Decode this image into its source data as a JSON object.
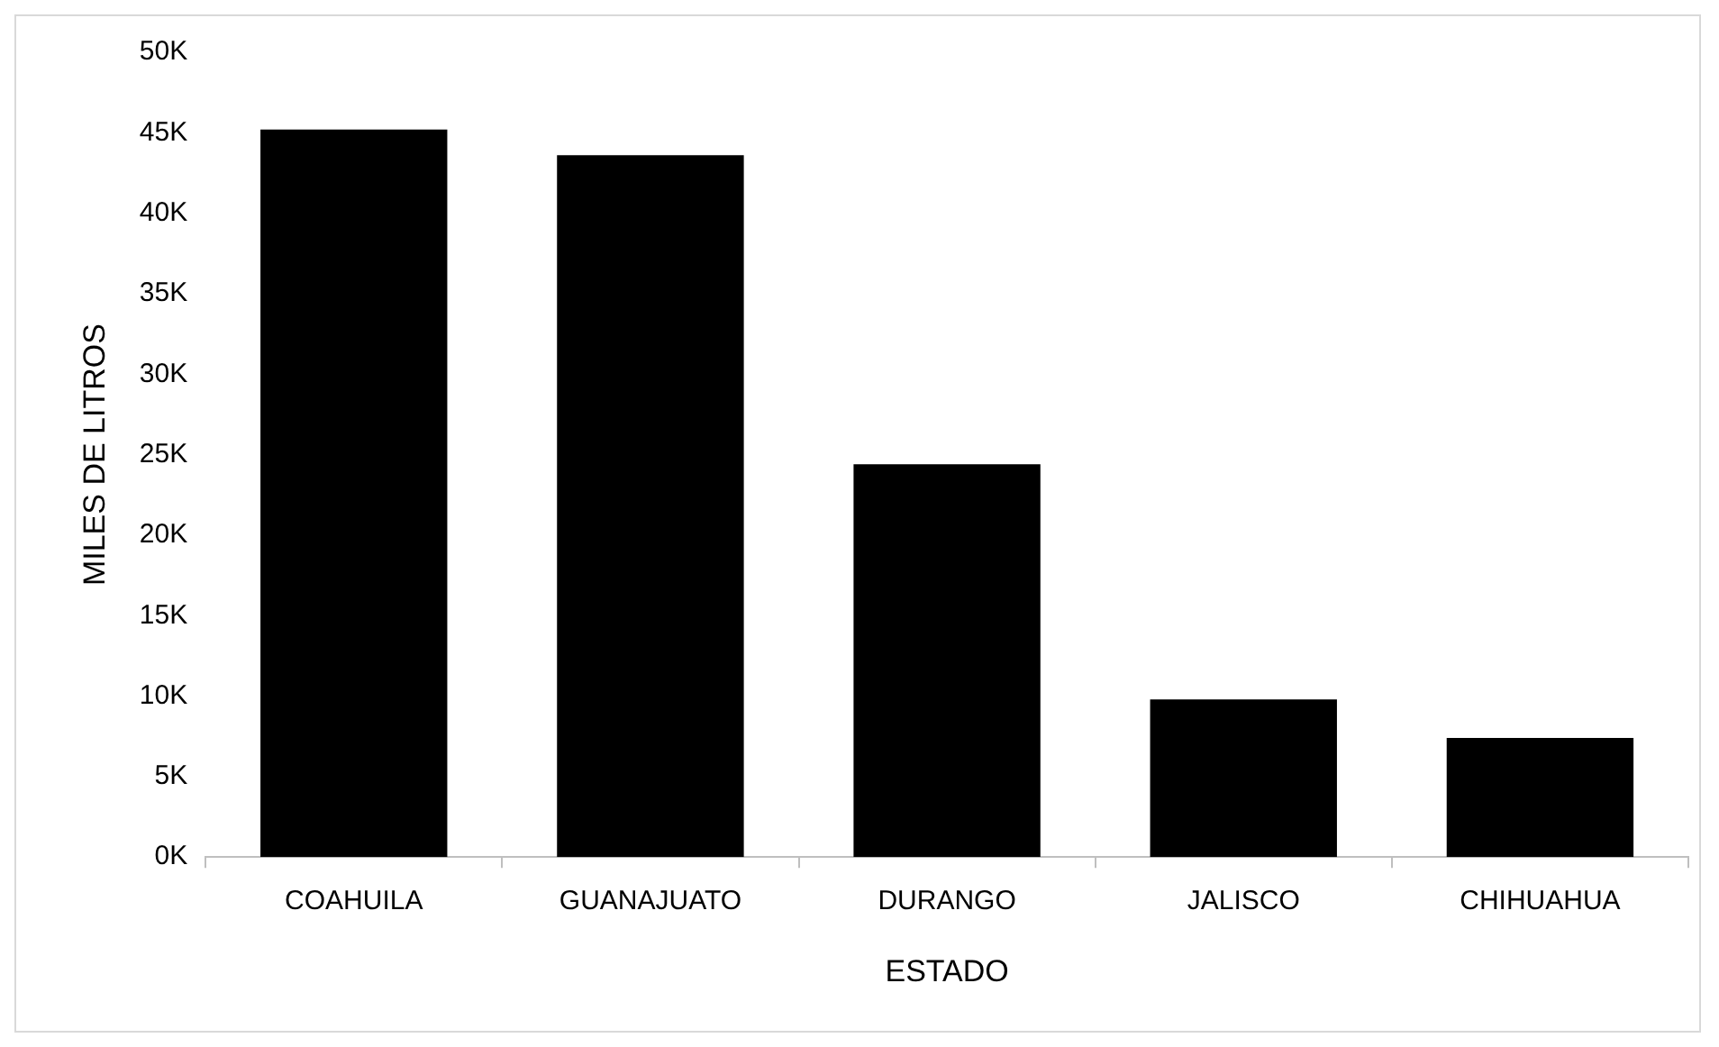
{
  "chart_data": {
    "type": "bar",
    "xlabel": "ESTADO",
    "ylabel": "MILES DE LITROS",
    "categories": [
      "COAHUILA",
      "GUANAJUATO",
      "DURANGO",
      "JALISCO",
      "CHIHUAHUA"
    ],
    "values": [
      45200,
      43600,
      24400,
      9800,
      7400
    ],
    "color": "#000000",
    "ylim": [
      0,
      50000
    ],
    "yticks": [
      {
        "value": 0,
        "label": "0K"
      },
      {
        "value": 5000,
        "label": "5K"
      },
      {
        "value": 10000,
        "label": "10K"
      },
      {
        "value": 15000,
        "label": "15K"
      },
      {
        "value": 20000,
        "label": "20K"
      },
      {
        "value": 25000,
        "label": "25K"
      },
      {
        "value": 30000,
        "label": "30K"
      },
      {
        "value": 35000,
        "label": "35K"
      },
      {
        "value": 40000,
        "label": "40K"
      },
      {
        "value": 45000,
        "label": "45K"
      },
      {
        "value": 50000,
        "label": "50K"
      }
    ],
    "grid": false,
    "legend": false
  }
}
